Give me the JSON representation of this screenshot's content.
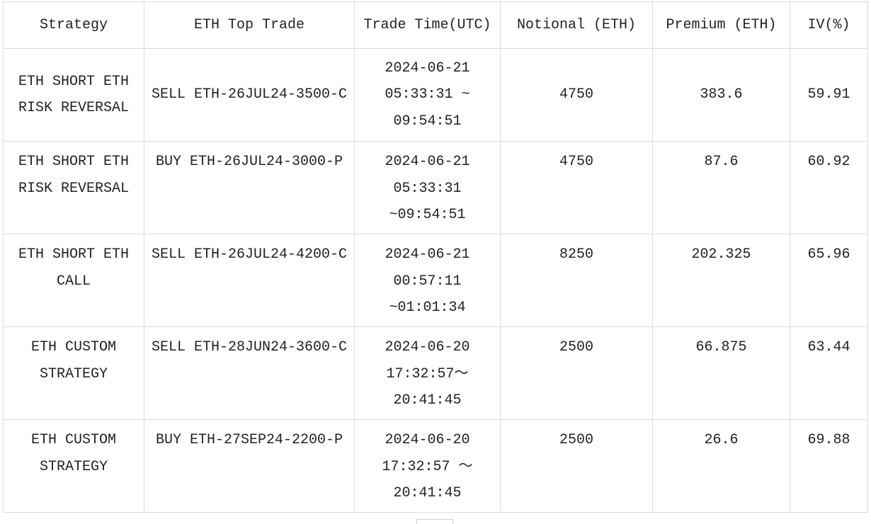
{
  "headers": [
    "Strategy",
    "ETH Top Trade",
    "Trade Time(UTC)",
    "Notional (ETH)",
    "Premium (ETH)",
    "IV(%)"
  ],
  "rows": [
    {
      "strategy": "ETH SHORT ETH\nRISK REVERSAL",
      "trade": "SELL ETH-26JUL24-3500-C",
      "time": "2024-06-21\n05:33:31 ~\n09:54:51",
      "notional": "4750",
      "premium": "383.6",
      "iv": "59.91"
    },
    {
      "strategy": "ETH SHORT ETH\nRISK REVERSAL",
      "trade": "BUY ETH-26JUL24-3000-P",
      "time": "2024-06-21\n05:33:31\n~09:54:51",
      "notional": "4750",
      "premium": "87.6",
      "iv": "60.92"
    },
    {
      "strategy": "ETH SHORT ETH\nCALL",
      "trade": "SELL ETH-26JUL24-4200-C",
      "time": "2024-06-21\n00:57:11\n~01:01:34",
      "notional": "8250",
      "premium": "202.325",
      "iv": "65.96"
    },
    {
      "strategy": "ETH CUSTOM\nSTRATEGY",
      "trade": "SELL ETH-28JUN24-3600-C",
      "time": "2024-06-20\n17:32:57～\n20:41:45",
      "notional": "2500",
      "premium": "66.875",
      "iv": "63.44"
    },
    {
      "strategy": "ETH CUSTOM\nSTRATEGY",
      "trade": "BUY ETH-27SEP24-2200-P",
      "time": "2024-06-20\n17:32:57 ～\n20:41:45",
      "notional": "2500",
      "premium": "26.6",
      "iv": "69.88"
    }
  ]
}
